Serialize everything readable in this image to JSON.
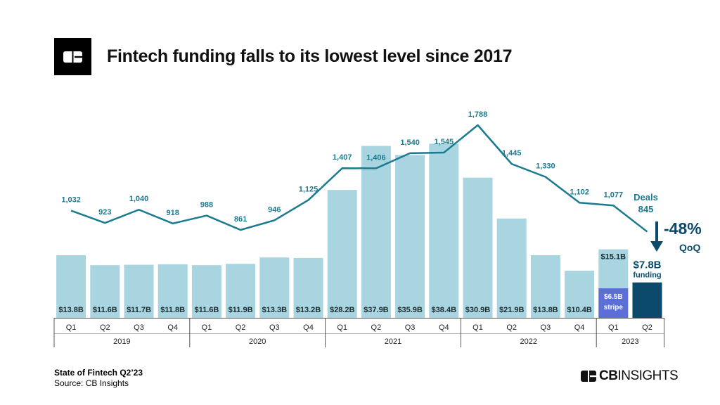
{
  "header": {
    "title": "Fintech funding falls to its lowest level since 2017"
  },
  "footer": {
    "report": "State of Fintech Q2’23",
    "source": "Source: CB Insights",
    "brand_bold": "CB",
    "brand_rest": "INSIGHTS"
  },
  "colors": {
    "bar": "#a8d5df",
    "line": "#1a7a90",
    "highlight_bar": "#0b4a6b",
    "stripe_bar": "#5b6fd6",
    "deal_label": "#1a7a90"
  },
  "chart_data": {
    "type": "bar",
    "title": "Fintech funding falls to its lowest level since 2017",
    "ylabel": "",
    "xlabel": "",
    "quarters": [
      "Q1",
      "Q2",
      "Q3",
      "Q4",
      "Q1",
      "Q2",
      "Q3",
      "Q4",
      "Q1",
      "Q2",
      "Q3",
      "Q4",
      "Q1",
      "Q2",
      "Q3",
      "Q4",
      "Q1",
      "Q2"
    ],
    "years": [
      {
        "label": "2019",
        "count": 4
      },
      {
        "label": "2020",
        "count": 4
      },
      {
        "label": "2021",
        "count": 4
      },
      {
        "label": "2022",
        "count": 4
      },
      {
        "label": "2023",
        "count": 2
      }
    ],
    "series": [
      {
        "name": "Funding ($B)",
        "values": [
          13.8,
          11.6,
          11.7,
          11.8,
          11.6,
          11.9,
          13.3,
          13.2,
          28.2,
          37.9,
          35.9,
          38.4,
          30.9,
          21.9,
          13.8,
          10.4,
          15.1,
          7.8
        ],
        "labels": [
          "$13.8B",
          "$11.6B",
          "$11.7B",
          "$11.8B",
          "$11.6B",
          "$11.9B",
          "$13.3B",
          "$13.2B",
          "$28.2B",
          "$37.9B",
          "$35.9B",
          "$38.4B",
          "$30.9B",
          "$21.9B",
          "$13.8B",
          "$10.4B",
          "$15.1B",
          "$7.8B"
        ]
      },
      {
        "name": "Deals",
        "values": [
          1032,
          923,
          1040,
          918,
          988,
          861,
          946,
          1125,
          1407,
          1406,
          1540,
          1545,
          1788,
          1445,
          1330,
          1102,
          1077,
          845
        ],
        "labels": [
          "1,032",
          "923",
          "1,040",
          "918",
          "988",
          "861",
          "946",
          "1,125",
          "1,407",
          "1,406",
          "1,540",
          "1,545",
          "1,788",
          "1,445",
          "1,330",
          "1,102",
          "1,077",
          "845"
        ]
      }
    ],
    "annotations": {
      "stripe_value": 6.5,
      "stripe_amount": "$6.5B",
      "stripe_text": "stripe",
      "q1_2023_total": "$15.1B",
      "latest_funding_amount": "$7.8B",
      "latest_funding_text": "funding",
      "latest_deals_title": "Deals",
      "latest_deals_value": "845",
      "qoq_change": "-48%",
      "qoq_text": "QoQ"
    }
  }
}
